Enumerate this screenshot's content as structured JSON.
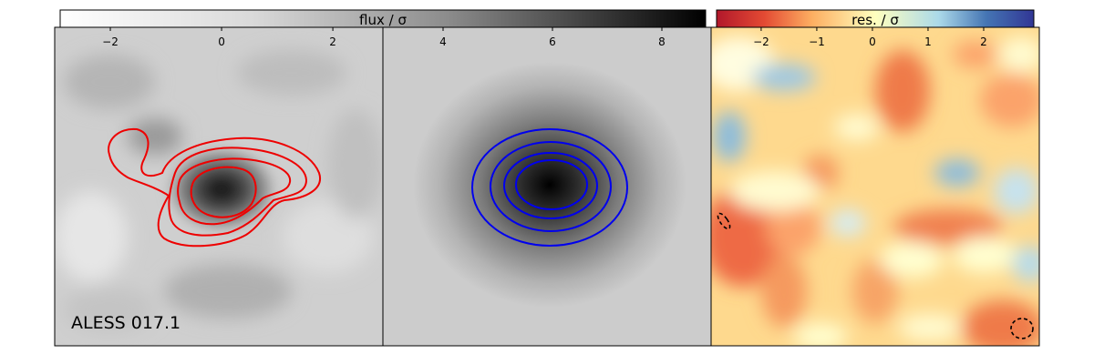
{
  "figure": {
    "source_label": "ALESS 017.1"
  },
  "chart_data": [
    {
      "type": "heatmap",
      "panel": "data",
      "colormap": "greys",
      "colorbar_label": "flux / σ",
      "contour_color": "#ee0000",
      "contour_levels": 4,
      "color_ticks": [
        -2,
        0,
        2
      ],
      "clim": [
        -3,
        2.9
      ]
    },
    {
      "type": "heatmap",
      "panel": "model",
      "colormap": "greys",
      "contour_color": "#0000ee",
      "contour_levels": 4,
      "color_ticks": [
        4,
        6,
        8
      ],
      "clim": [
        2.9,
        8.9
      ]
    },
    {
      "type": "heatmap",
      "panel": "residual",
      "colormap": "RdYlBu",
      "colorbar_label": "res. / σ",
      "color_ticks": [
        -2,
        -1,
        0,
        1,
        2
      ],
      "clim": [
        -2.9,
        3
      ]
    }
  ]
}
